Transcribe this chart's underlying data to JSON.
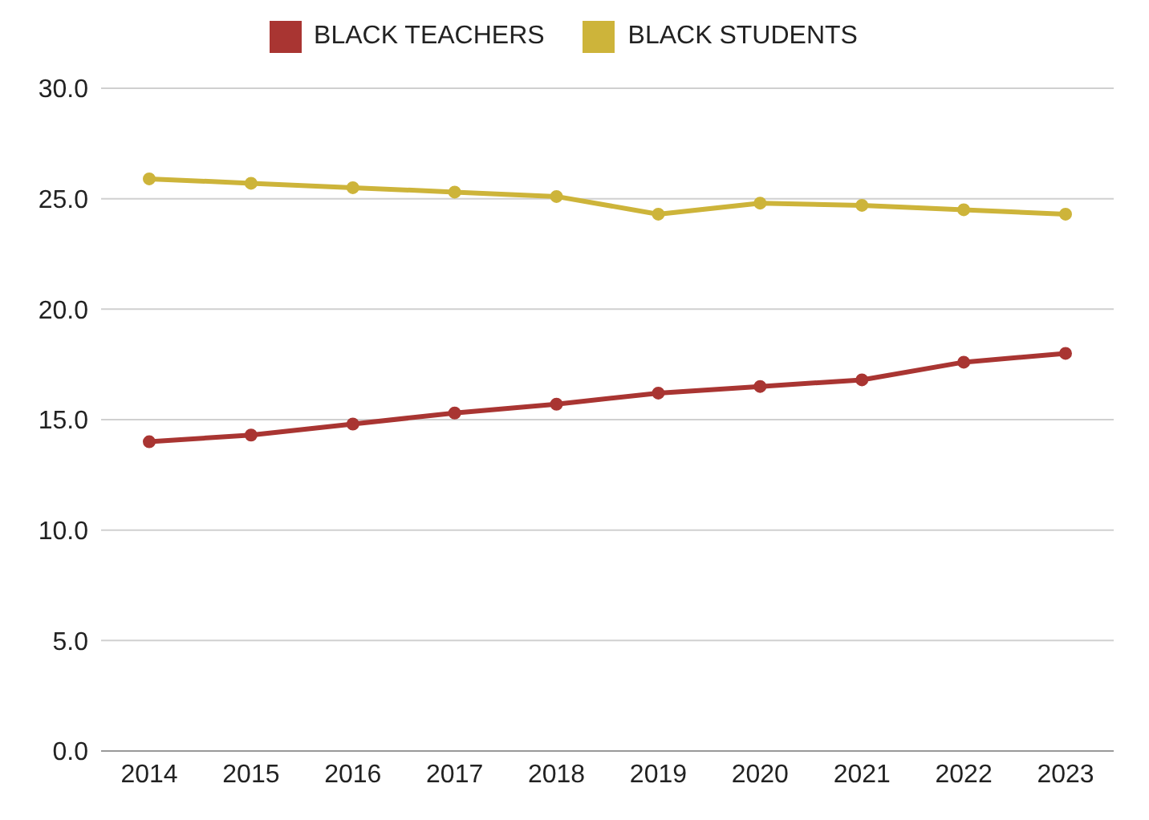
{
  "chart_data": {
    "type": "line",
    "categories": [
      "2014",
      "2015",
      "2016",
      "2017",
      "2018",
      "2019",
      "2020",
      "2021",
      "2022",
      "2023"
    ],
    "series": [
      {
        "name": "BLACK TEACHERS",
        "color": "#a93532",
        "values": [
          14.0,
          14.3,
          14.8,
          15.3,
          15.7,
          16.2,
          16.5,
          16.8,
          17.6,
          18.0
        ]
      },
      {
        "name": "BLACK STUDENTS",
        "color": "#cdb43a",
        "values": [
          25.9,
          25.7,
          25.5,
          25.3,
          25.1,
          24.3,
          24.8,
          24.7,
          24.5,
          24.3
        ]
      }
    ],
    "ylim": [
      0,
      30
    ],
    "yticks": [
      {
        "value": 0,
        "label": "0.0"
      },
      {
        "value": 5,
        "label": "5.0"
      },
      {
        "value": 10,
        "label": "10.0"
      },
      {
        "value": 15,
        "label": "15.0"
      },
      {
        "value": 20,
        "label": "20.0"
      },
      {
        "value": 25,
        "label": "25.0"
      },
      {
        "value": 30,
        "label": "30.0"
      }
    ],
    "grid": "y",
    "legend": "top",
    "marker": "circle",
    "line_style": "solid"
  }
}
